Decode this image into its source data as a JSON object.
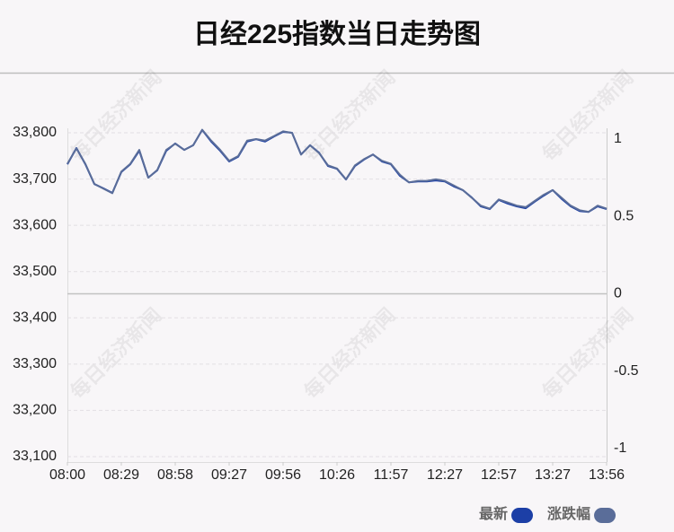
{
  "chart_data": {
    "type": "line",
    "title": "日经225指数当日走势图",
    "watermark": "每日经济新闻",
    "xlim": [
      0,
      60
    ],
    "xticks": [
      {
        "value": 0,
        "label": "08:00"
      },
      {
        "value": 6,
        "label": "08:29"
      },
      {
        "value": 12,
        "label": "08:58"
      },
      {
        "value": 18,
        "label": "09:27"
      },
      {
        "value": 24,
        "label": "09:56"
      },
      {
        "value": 30,
        "label": "10:26"
      },
      {
        "value": 36,
        "label": "11:57"
      },
      {
        "value": 42,
        "label": "12:27"
      },
      {
        "value": 48,
        "label": "12:57"
      },
      {
        "value": 54,
        "label": "13:27"
      },
      {
        "value": 60,
        "label": "13:56"
      }
    ],
    "ylim": [
      33100,
      33800
    ],
    "yticks": [
      {
        "value": 33100,
        "label": "33,100"
      },
      {
        "value": 33200,
        "label": "33,200"
      },
      {
        "value": 33300,
        "label": "33,300"
      },
      {
        "value": 33400,
        "label": "33,400"
      },
      {
        "value": 33500,
        "label": "33,500"
      },
      {
        "value": 33600,
        "label": "33,600"
      },
      {
        "value": 33700,
        "label": "33,700"
      },
      {
        "value": 33800,
        "label": "33,800"
      }
    ],
    "y2lim": [
      -1,
      1
    ],
    "y2ticks": [
      1,
      0.5,
      0,
      -0.5,
      -1
    ],
    "grid": true,
    "legend": "bottom-right",
    "series": [
      {
        "name": "最新",
        "color": "#1c3fa6",
        "values": [
          33732,
          33767,
          33732,
          33689,
          33680,
          33670,
          33715,
          33732,
          33761,
          33703,
          33719,
          33761,
          33777,
          33763,
          33773,
          33806,
          33781,
          33761,
          33738,
          33748,
          33781,
          33786,
          33781,
          33792,
          33802,
          33800,
          33753,
          33773,
          33757,
          33728,
          33722,
          33699,
          33728,
          33742,
          33753,
          33738,
          33732,
          33707,
          33693,
          33695,
          33695,
          33697,
          33695,
          33684,
          33676,
          33660,
          33641,
          33635,
          33655,
          33647,
          33641,
          33637,
          33651,
          33664,
          33676,
          33657,
          33641,
          33631,
          33629,
          33641,
          33635
        ]
      },
      {
        "name": "涨跌幅",
        "color": "#5a6d99",
        "axis": "y2",
        "values": [
          0.84,
          0.94,
          0.84,
          0.71,
          0.68,
          0.65,
          0.79,
          0.84,
          0.93,
          0.75,
          0.8,
          0.93,
          0.97,
          0.93,
          0.96,
          1.06,
          0.99,
          0.93,
          0.86,
          0.89,
          0.99,
          1.0,
          0.99,
          1.02,
          1.05,
          1.04,
          0.9,
          0.96,
          0.91,
          0.83,
          0.81,
          0.74,
          0.83,
          0.87,
          0.9,
          0.86,
          0.84,
          0.77,
          0.72,
          0.73,
          0.73,
          0.74,
          0.73,
          0.7,
          0.67,
          0.62,
          0.57,
          0.55,
          0.61,
          0.59,
          0.57,
          0.56,
          0.6,
          0.64,
          0.67,
          0.62,
          0.57,
          0.54,
          0.53,
          0.57,
          0.55
        ]
      }
    ]
  }
}
